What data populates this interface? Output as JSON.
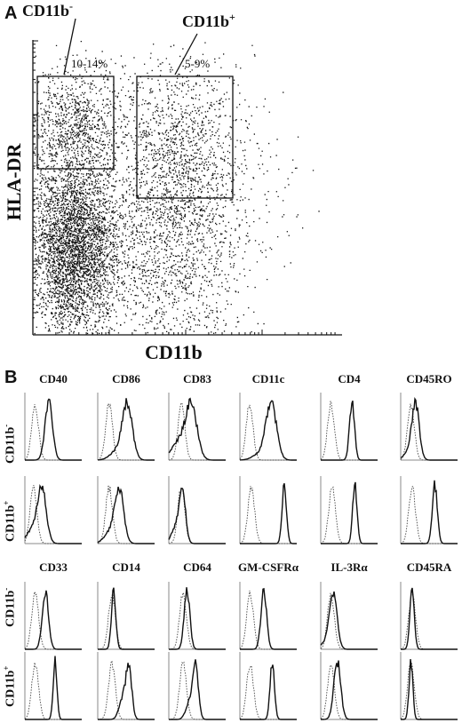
{
  "panel_a": {
    "letter": "A",
    "gate_neg": {
      "name": "CD11b",
      "sign": "-",
      "percent": "10-14%"
    },
    "gate_pos": {
      "name": "CD11b",
      "sign": "+",
      "percent": "5-9%"
    },
    "y_label": "HLA-DR",
    "x_label": "CD11b"
  },
  "panel_b": {
    "letter": "B",
    "row_label_neg": {
      "name": "CD11b",
      "sign": "-"
    },
    "row_label_pos": {
      "name": "CD11b",
      "sign": "+"
    },
    "top_markers": [
      "CD40",
      "CD86",
      "CD83",
      "CD11c",
      "CD4",
      "CD45RO"
    ],
    "bottom_markers": [
      "CD33",
      "CD14",
      "CD64",
      "GM-CSFRα",
      "IL-3Rα",
      "CD45RA"
    ]
  }
}
